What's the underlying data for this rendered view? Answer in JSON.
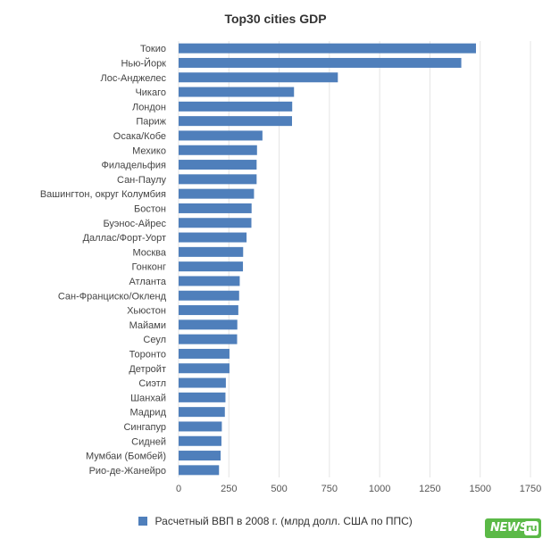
{
  "chart_data": {
    "type": "bar",
    "orientation": "horizontal",
    "title": "Top30 cities GDP",
    "categories": [
      "Токио",
      "Нью-Йорк",
      "Лос-Анджелес",
      "Чикаго",
      "Лондон",
      "Париж",
      "Осака/Кобе",
      "Мехико",
      "Филадельфия",
      "Сан-Паулу",
      "Вашингтон, округ Колумбия",
      "Бостон",
      "Буэнос-Айрес",
      "Даллас/Форт-Уорт",
      "Москва",
      "Гонконг",
      "Атланта",
      "Сан-Франциско/Окленд",
      "Хьюстон",
      "Майами",
      "Сеул",
      "Торонто",
      "Детройт",
      "Сиэтл",
      "Шанхай",
      "Мадрид",
      "Сингапур",
      "Сидней",
      "Мумбаи (Бомбей)",
      "Рио-де-Жанейро"
    ],
    "series": [
      {
        "name": "Расчетный ВВП в 2008 г. (млрд долл. США по ППС)",
        "color": "#4f7fbb",
        "values": [
          1479,
          1406,
          792,
          574,
          565,
          564,
          417,
          390,
          388,
          388,
          375,
          363,
          362,
          338,
          321,
          320,
          304,
          301,
          297,
          292,
          291,
          253,
          253,
          235,
          233,
          230,
          215,
          213,
          209,
          201
        ]
      }
    ],
    "xlim": [
      0,
      1750
    ],
    "xticks": [
      0,
      250,
      500,
      750,
      1000,
      1250,
      1500,
      1750
    ],
    "grid": true,
    "legend_position": "bottom-center"
  },
  "branding": {
    "logo_text": "NEWS",
    "logo_mark": "ru"
  }
}
